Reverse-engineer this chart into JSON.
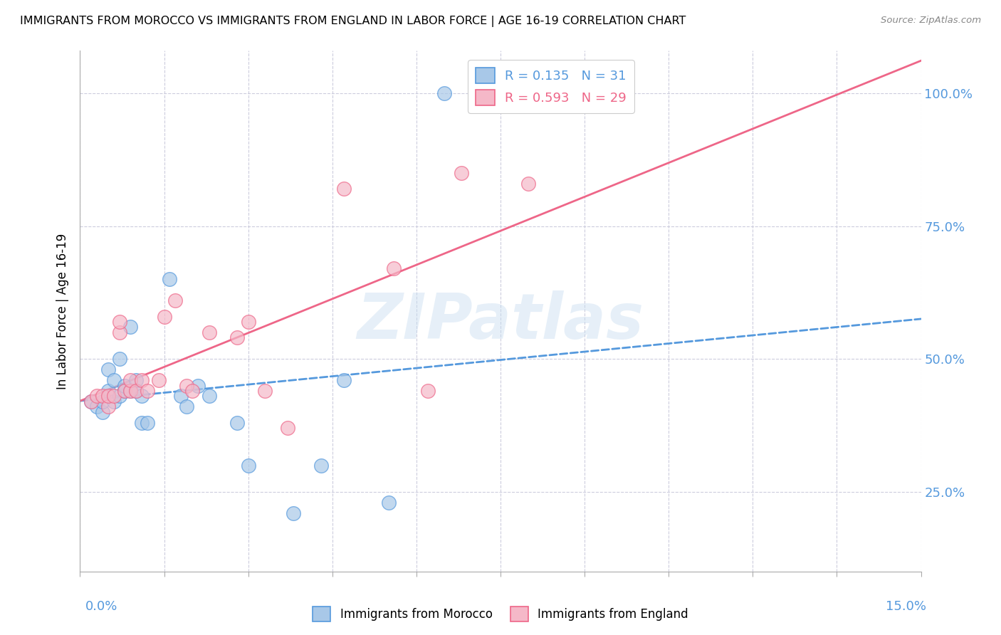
{
  "title": "IMMIGRANTS FROM MOROCCO VS IMMIGRANTS FROM ENGLAND IN LABOR FORCE | AGE 16-19 CORRELATION CHART",
  "source": "Source: ZipAtlas.com",
  "ylabel": "In Labor Force | Age 16-19",
  "yticks": [
    0.25,
    0.5,
    0.75,
    1.0
  ],
  "ytick_labels": [
    "25.0%",
    "50.0%",
    "75.0%",
    "100.0%"
  ],
  "x_min": 0.0,
  "x_max": 0.15,
  "y_min": 0.1,
  "y_max": 1.08,
  "legend_R1": "0.135",
  "legend_N1": "31",
  "legend_R2": "0.593",
  "legend_N2": "29",
  "watermark": "ZIPatlas",
  "blue_color": "#a8c8e8",
  "pink_color": "#f5b8c8",
  "blue_line_color": "#5599dd",
  "pink_line_color": "#ee6688",
  "blue_scatter": [
    [
      0.002,
      0.42
    ],
    [
      0.003,
      0.41
    ],
    [
      0.004,
      0.4
    ],
    [
      0.004,
      0.42
    ],
    [
      0.005,
      0.44
    ],
    [
      0.005,
      0.48
    ],
    [
      0.006,
      0.46
    ],
    [
      0.006,
      0.42
    ],
    [
      0.007,
      0.5
    ],
    [
      0.007,
      0.43
    ],
    [
      0.008,
      0.44
    ],
    [
      0.008,
      0.45
    ],
    [
      0.009,
      0.56
    ],
    [
      0.009,
      0.44
    ],
    [
      0.01,
      0.44
    ],
    [
      0.01,
      0.46
    ],
    [
      0.011,
      0.43
    ],
    [
      0.011,
      0.38
    ],
    [
      0.012,
      0.38
    ],
    [
      0.016,
      0.65
    ],
    [
      0.018,
      0.43
    ],
    [
      0.019,
      0.41
    ],
    [
      0.021,
      0.45
    ],
    [
      0.023,
      0.43
    ],
    [
      0.028,
      0.38
    ],
    [
      0.03,
      0.3
    ],
    [
      0.038,
      0.21
    ],
    [
      0.043,
      0.3
    ],
    [
      0.047,
      0.46
    ],
    [
      0.055,
      0.23
    ],
    [
      0.065,
      1.0
    ]
  ],
  "pink_scatter": [
    [
      0.002,
      0.42
    ],
    [
      0.003,
      0.43
    ],
    [
      0.004,
      0.43
    ],
    [
      0.005,
      0.41
    ],
    [
      0.005,
      0.43
    ],
    [
      0.006,
      0.43
    ],
    [
      0.007,
      0.55
    ],
    [
      0.007,
      0.57
    ],
    [
      0.008,
      0.44
    ],
    [
      0.009,
      0.44
    ],
    [
      0.009,
      0.46
    ],
    [
      0.01,
      0.44
    ],
    [
      0.011,
      0.46
    ],
    [
      0.012,
      0.44
    ],
    [
      0.014,
      0.46
    ],
    [
      0.015,
      0.58
    ],
    [
      0.017,
      0.61
    ],
    [
      0.019,
      0.45
    ],
    [
      0.02,
      0.44
    ],
    [
      0.023,
      0.55
    ],
    [
      0.028,
      0.54
    ],
    [
      0.03,
      0.57
    ],
    [
      0.033,
      0.44
    ],
    [
      0.037,
      0.37
    ],
    [
      0.047,
      0.82
    ],
    [
      0.056,
      0.67
    ],
    [
      0.062,
      0.44
    ],
    [
      0.068,
      0.85
    ],
    [
      0.08,
      0.83
    ]
  ]
}
